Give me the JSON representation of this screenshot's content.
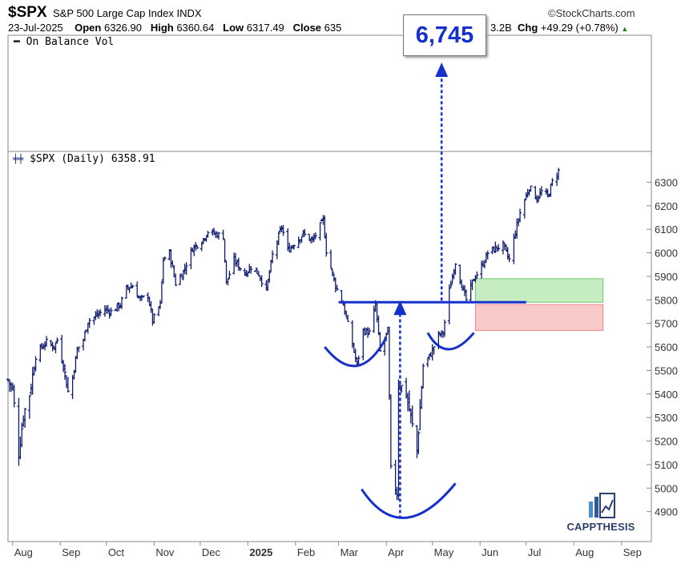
{
  "header": {
    "symbol": "$SPX",
    "name": "S&P 500 Large Cap Index",
    "exchange": "INDX",
    "brand": "©StockCharts.com",
    "date": "23-Jul-2025",
    "open_label": "Open",
    "open": "6326.90",
    "high_label": "High",
    "high": "6360.64",
    "low_label": "Low",
    "low": "6317.49",
    "close_label": "Close",
    "close_partial": "635",
    "volume_partial": "3.2B",
    "chg_label": "Chg",
    "chg": "+49.29 (+0.78%)"
  },
  "annotation": {
    "target": "6,745",
    "neckline": 5790
  },
  "panels": {
    "obv_label": "On Balance Vol",
    "price_label": "$SPX (Daily) 6358.91"
  },
  "logo": {
    "text": "CAPPTHESIS"
  },
  "colors": {
    "price_bars": "#0d1a6e",
    "annotation": "#1530cc",
    "green_zone": "#c6ecc2",
    "red_zone": "#f8c9c9",
    "axis": "#888888"
  },
  "chart_data": {
    "type": "ohlc",
    "title": "$SPX (Daily) 6358.91",
    "y_ticks": [
      6300,
      6200,
      6100,
      6000,
      5900,
      5800,
      5700,
      5600,
      5500,
      5400,
      5300,
      5200,
      5100,
      5000,
      4900
    ],
    "ylim": [
      4800,
      6390
    ],
    "x_ticks": [
      "Aug",
      "Sep",
      "Oct",
      "Nov",
      "Dec",
      "2025",
      "Feb",
      "Mar",
      "Apr",
      "May",
      "Jun",
      "Jul",
      "Aug",
      "Sep"
    ],
    "x_range": [
      "2024-07-29",
      "2025-09-10"
    ],
    "series": [
      {
        "points": [
          [
            "2024-07-29",
            5460
          ],
          [
            "2024-08-01",
            5420
          ],
          [
            "2024-08-05",
            5150
          ],
          [
            "2024-08-08",
            5310
          ],
          [
            "2024-08-12",
            5400
          ],
          [
            "2024-08-16",
            5560
          ],
          [
            "2024-08-20",
            5600
          ],
          [
            "2024-08-23",
            5620
          ],
          [
            "2024-08-28",
            5600
          ],
          [
            "2024-08-30",
            5630
          ],
          [
            "2024-09-03",
            5520
          ],
          [
            "2024-09-06",
            5410
          ],
          [
            "2024-09-09",
            5470
          ],
          [
            "2024-09-12",
            5590
          ],
          [
            "2024-09-16",
            5630
          ],
          [
            "2024-09-19",
            5710
          ],
          [
            "2024-09-24",
            5730
          ],
          [
            "2024-09-30",
            5760
          ],
          [
            "2024-10-04",
            5750
          ],
          [
            "2024-10-10",
            5780
          ],
          [
            "2024-10-14",
            5850
          ],
          [
            "2024-10-18",
            5860
          ],
          [
            "2024-10-23",
            5800
          ],
          [
            "2024-10-28",
            5820
          ],
          [
            "2024-10-31",
            5710
          ],
          [
            "2024-11-05",
            5780
          ],
          [
            "2024-11-07",
            5970
          ],
          [
            "2024-11-11",
            6000
          ],
          [
            "2024-11-15",
            5870
          ],
          [
            "2024-11-20",
            5920
          ],
          [
            "2024-11-26",
            6020
          ],
          [
            "2024-12-02",
            6050
          ],
          [
            "2024-12-06",
            6090
          ],
          [
            "2024-12-11",
            6080
          ],
          [
            "2024-12-16",
            6070
          ],
          [
            "2024-12-18",
            5870
          ],
          [
            "2024-12-23",
            5970
          ],
          [
            "2024-12-30",
            5910
          ],
          [
            "2025-01-03",
            5940
          ],
          [
            "2025-01-08",
            5910
          ],
          [
            "2025-01-13",
            5840
          ],
          [
            "2025-01-17",
            5990
          ],
          [
            "2025-01-23",
            6110
          ],
          [
            "2025-01-27",
            6010
          ],
          [
            "2025-01-31",
            6040
          ],
          [
            "2025-02-06",
            6080
          ],
          [
            "2025-02-12",
            6050
          ],
          [
            "2025-02-19",
            6140
          ],
          [
            "2025-02-21",
            6010
          ],
          [
            "2025-02-27",
            5860
          ],
          [
            "2025-03-04",
            5780
          ],
          [
            "2025-03-10",
            5610
          ],
          [
            "2025-03-13",
            5520
          ],
          [
            "2025-03-17",
            5670
          ],
          [
            "2025-03-21",
            5660
          ],
          [
            "2025-03-25",
            5780
          ],
          [
            "2025-03-28",
            5580
          ],
          [
            "2025-04-02",
            5670
          ],
          [
            "2025-04-04",
            5070
          ],
          [
            "2025-04-08",
            4980
          ],
          [
            "2025-04-09",
            5450
          ],
          [
            "2025-04-14",
            5400
          ],
          [
            "2025-04-21",
            5160
          ],
          [
            "2025-04-25",
            5520
          ],
          [
            "2025-04-30",
            5570
          ],
          [
            "2025-05-05",
            5650
          ],
          [
            "2025-05-08",
            5660
          ],
          [
            "2025-05-12",
            5840
          ],
          [
            "2025-05-16",
            5960
          ],
          [
            "2025-05-21",
            5840
          ],
          [
            "2025-05-23",
            5800
          ],
          [
            "2025-05-28",
            5890
          ],
          [
            "2025-06-02",
            5940
          ],
          [
            "2025-06-06",
            6000
          ],
          [
            "2025-06-11",
            6020
          ],
          [
            "2025-06-16",
            6030
          ],
          [
            "2025-06-20",
            5970
          ],
          [
            "2025-06-24",
            6090
          ],
          [
            "2025-06-27",
            6170
          ],
          [
            "2025-07-03",
            6280
          ],
          [
            "2025-07-08",
            6230
          ],
          [
            "2025-07-11",
            6260
          ],
          [
            "2025-07-15",
            6240
          ],
          [
            "2025-07-18",
            6300
          ],
          [
            "2025-07-23",
            6359
          ]
        ]
      }
    ],
    "zones": [
      {
        "color": "green",
        "from": "2025-05-29",
        "to": "2025-08-20",
        "low": 5790,
        "high": 5890
      },
      {
        "color": "red",
        "from": "2025-05-29",
        "to": "2025-08-20",
        "low": 5670,
        "high": 5780
      }
    ]
  }
}
